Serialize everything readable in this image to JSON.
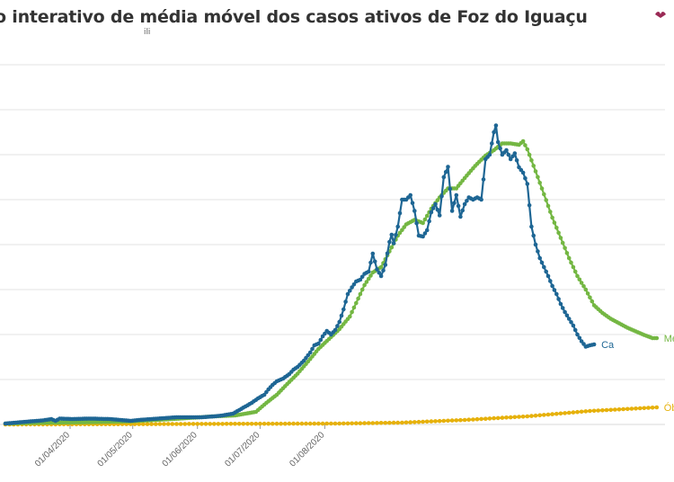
{
  "header": {
    "title": "o interativo de média móvel dos casos ativos de Foz do Iguaçu",
    "subtitle": "ili"
  },
  "chart_data": {
    "type": "line",
    "title": "o interativo de média móvel dos casos ativos de Foz do Iguaçu",
    "xlabel": "",
    "ylabel": "",
    "grid": true,
    "x_ticks": [
      "01/04/2020",
      "01/05/2020",
      "01/06/2020",
      "01/07/2020",
      "01/08/2020"
    ],
    "ylim": [
      0,
      800
    ],
    "series": [
      {
        "name": "Casos ativos",
        "label": "Ca",
        "color": "#1e6694",
        "points": [
          [
            0,
            2
          ],
          [
            10,
            6
          ],
          [
            18,
            9
          ],
          [
            22,
            12
          ],
          [
            24,
            8
          ],
          [
            26,
            13
          ],
          [
            32,
            12
          ],
          [
            40,
            13
          ],
          [
            50,
            12
          ],
          [
            55,
            10
          ],
          [
            60,
            8
          ],
          [
            64,
            10
          ],
          [
            70,
            12
          ],
          [
            76,
            14
          ],
          [
            82,
            16
          ],
          [
            88,
            16
          ],
          [
            94,
            16
          ],
          [
            100,
            18
          ],
          [
            104,
            20
          ],
          [
            109,
            24
          ],
          [
            112,
            32
          ],
          [
            115,
            40
          ],
          [
            118,
            48
          ],
          [
            121,
            58
          ],
          [
            124,
            66
          ],
          [
            126,
            78
          ],
          [
            128,
            88
          ],
          [
            130,
            96
          ],
          [
            133,
            102
          ],
          [
            136,
            112
          ],
          [
            138,
            122
          ],
          [
            140,
            128
          ],
          [
            143,
            142
          ],
          [
            146,
            160
          ],
          [
            148,
            176
          ],
          [
            150,
            180
          ],
          [
            152,
            196
          ],
          [
            154,
            208
          ],
          [
            156,
            200
          ],
          [
            158,
            210
          ],
          [
            160,
            228
          ],
          [
            162,
            256
          ],
          [
            164,
            290
          ],
          [
            166,
            305
          ],
          [
            168,
            318
          ],
          [
            170,
            322
          ],
          [
            172,
            335
          ],
          [
            174,
            340
          ],
          [
            176,
            380
          ],
          [
            178,
            345
          ],
          [
            180,
            330
          ],
          [
            182,
            355
          ],
          [
            184,
            406
          ],
          [
            185,
            422
          ],
          [
            186,
            403
          ],
          [
            188,
            440
          ],
          [
            190,
            500
          ],
          [
            192,
            500
          ],
          [
            194,
            510
          ],
          [
            196,
            475
          ],
          [
            198,
            420
          ],
          [
            200,
            418
          ],
          [
            202,
            432
          ],
          [
            204,
            472
          ],
          [
            206,
            490
          ],
          [
            208,
            465
          ],
          [
            210,
            550
          ],
          [
            212,
            573
          ],
          [
            214,
            475
          ],
          [
            216,
            510
          ],
          [
            218,
            462
          ],
          [
            220,
            490
          ],
          [
            222,
            505
          ],
          [
            224,
            500
          ],
          [
            226,
            505
          ],
          [
            228,
            500
          ],
          [
            230,
            590
          ],
          [
            232,
            600
          ],
          [
            234,
            650
          ],
          [
            235,
            665
          ],
          [
            236,
            628
          ],
          [
            238,
            600
          ],
          [
            240,
            610
          ],
          [
            242,
            590
          ],
          [
            244,
            603
          ],
          [
            246,
            572
          ],
          [
            248,
            560
          ],
          [
            250,
            535
          ],
          [
            252,
            440
          ],
          [
            254,
            400
          ],
          [
            256,
            370
          ],
          [
            258,
            350
          ],
          [
            260,
            330
          ],
          [
            262,
            308
          ],
          [
            264,
            290
          ],
          [
            266,
            268
          ],
          [
            268,
            250
          ],
          [
            270,
            235
          ],
          [
            272,
            220
          ],
          [
            274,
            200
          ],
          [
            276,
            185
          ],
          [
            278,
            173
          ],
          [
            280,
            176
          ],
          [
            282,
            178
          ]
        ]
      },
      {
        "name": "Média móvel",
        "label": "Me",
        "color": "#74b743",
        "points": [
          [
            0,
            2
          ],
          [
            20,
            4
          ],
          [
            40,
            5
          ],
          [
            60,
            7
          ],
          [
            80,
            12
          ],
          [
            90,
            15
          ],
          [
            100,
            18
          ],
          [
            110,
            20
          ],
          [
            120,
            28
          ],
          [
            125,
            48
          ],
          [
            130,
            66
          ],
          [
            135,
            90
          ],
          [
            140,
            113
          ],
          [
            145,
            140
          ],
          [
            150,
            168
          ],
          [
            155,
            190
          ],
          [
            160,
            212
          ],
          [
            165,
            240
          ],
          [
            168,
            270
          ],
          [
            172,
            310
          ],
          [
            176,
            338
          ],
          [
            180,
            350
          ],
          [
            184,
            385
          ],
          [
            188,
            420
          ],
          [
            192,
            445
          ],
          [
            196,
            455
          ],
          [
            200,
            448
          ],
          [
            204,
            480
          ],
          [
            208,
            505
          ],
          [
            212,
            525
          ],
          [
            216,
            525
          ],
          [
            220,
            548
          ],
          [
            225,
            575
          ],
          [
            230,
            598
          ],
          [
            234,
            610
          ],
          [
            238,
            625
          ],
          [
            242,
            625
          ],
          [
            246,
            622
          ],
          [
            248,
            630
          ],
          [
            250,
            612
          ],
          [
            254,
            563
          ],
          [
            258,
            512
          ],
          [
            262,
            460
          ],
          [
            266,
            415
          ],
          [
            270,
            370
          ],
          [
            274,
            330
          ],
          [
            278,
            300
          ],
          [
            282,
            265
          ],
          [
            286,
            248
          ],
          [
            290,
            235
          ],
          [
            294,
            225
          ],
          [
            298,
            215
          ],
          [
            302,
            207
          ],
          [
            306,
            199
          ],
          [
            310,
            192
          ],
          [
            312,
            192
          ]
        ]
      },
      {
        "name": "Óbitos",
        "label": "Ób",
        "color": "#e6b10b",
        "points": [
          [
            0,
            0
          ],
          [
            160,
            2
          ],
          [
            190,
            4
          ],
          [
            220,
            10
          ],
          [
            250,
            18
          ],
          [
            280,
            30
          ],
          [
            312,
            38
          ]
        ]
      }
    ]
  }
}
